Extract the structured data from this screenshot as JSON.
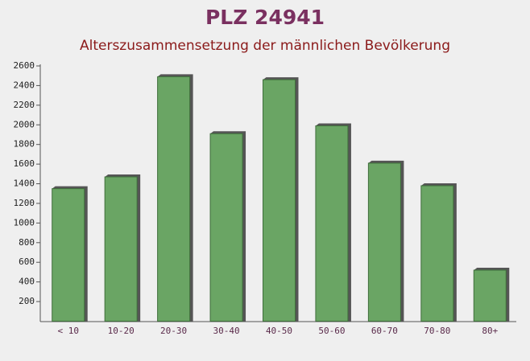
{
  "chart_data": {
    "type": "bar",
    "title": "PLZ 24941",
    "subtitle": "Alterszusammensetzung der männlichen Bevölkerung",
    "categories": [
      "< 10",
      "10-20",
      "20-30",
      "30-40",
      "40-50",
      "50-60",
      "60-70",
      "70-80",
      "80+"
    ],
    "values": [
      1350,
      1470,
      2490,
      1910,
      2460,
      1990,
      1610,
      1380,
      520
    ],
    "color": "#6aa564",
    "ylim": [
      0,
      2600
    ],
    "yticks": [
      200,
      400,
      600,
      800,
      1000,
      1200,
      1400,
      1600,
      1800,
      2000,
      2200,
      2400,
      2600
    ]
  }
}
